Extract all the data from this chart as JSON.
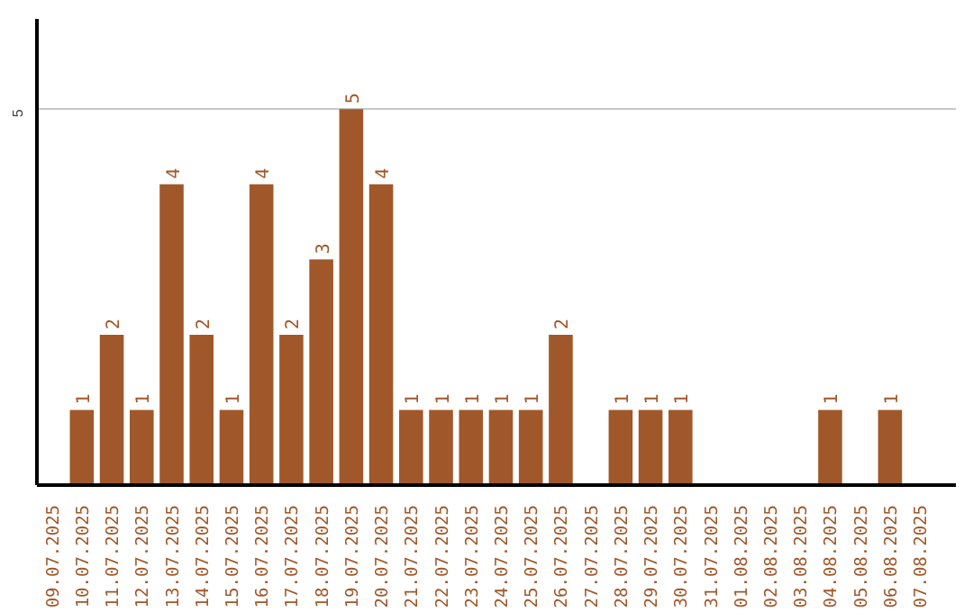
{
  "chart_data": {
    "type": "bar",
    "categories": [
      "09.07.2025",
      "10.07.2025",
      "11.07.2025",
      "12.07.2025",
      "13.07.2025",
      "14.07.2025",
      "15.07.2025",
      "16.07.2025",
      "17.07.2025",
      "18.07.2025",
      "19.07.2025",
      "20.07.2025",
      "21.07.2025",
      "22.07.2025",
      "23.07.2025",
      "24.07.2025",
      "25.07.2025",
      "26.07.2025",
      "27.07.2025",
      "28.07.2025",
      "29.07.2025",
      "30.07.2025",
      "31.07.2025",
      "01.08.2025",
      "02.08.2025",
      "03.08.2025",
      "04.08.2025",
      "05.08.2025",
      "06.08.2025",
      "07.08.2025"
    ],
    "values": [
      0,
      1,
      2,
      1,
      4,
      2,
      1,
      4,
      2,
      3,
      5,
      4,
      1,
      1,
      1,
      1,
      1,
      2,
      0,
      1,
      1,
      1,
      0,
      0,
      0,
      0,
      1,
      0,
      1,
      0
    ],
    "value_labels": [
      null,
      "1",
      "2",
      "1",
      "4",
      "2",
      "1",
      "4",
      "2",
      "3",
      "5",
      "4",
      "1",
      "1",
      "1",
      "1",
      "1",
      "2",
      null,
      "1",
      "1",
      "1",
      null,
      null,
      null,
      null,
      "1",
      null,
      "1",
      null
    ],
    "color": "#a0582a",
    "ylim": [
      0,
      6.2
    ],
    "yticks": [
      5
    ],
    "grid": "y"
  }
}
